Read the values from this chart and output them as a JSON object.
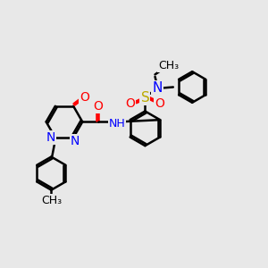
{
  "background_color": "#e8e8e8",
  "bond_color": "#000000",
  "bond_width": 1.8,
  "font_size": 10,
  "colors": {
    "N": "#0000ff",
    "O": "#ff0000",
    "S": "#bbaa00",
    "C": "#000000"
  },
  "layout": {
    "xlim": [
      0,
      12
    ],
    "ylim": [
      0,
      10
    ]
  }
}
